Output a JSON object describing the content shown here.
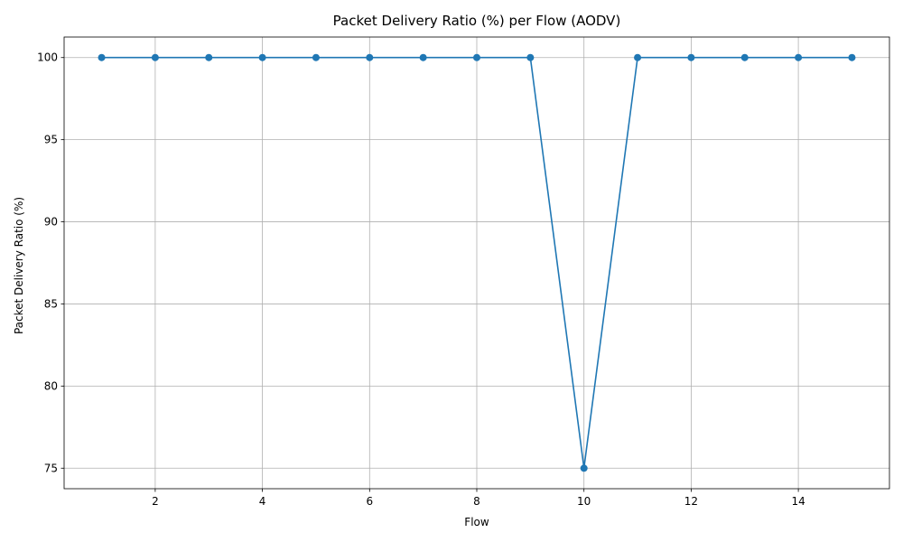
{
  "chart_data": {
    "type": "line",
    "title": "Packet Delivery Ratio (%) per Flow (AODV)",
    "xlabel": "Flow",
    "ylabel": "Packet Delivery Ratio (%)",
    "x": [
      1,
      2,
      3,
      4,
      5,
      6,
      7,
      8,
      9,
      10,
      11,
      12,
      13,
      14,
      15
    ],
    "series": [
      {
        "values": [
          100,
          100,
          100,
          100,
          100,
          100,
          100,
          100,
          100,
          75,
          100,
          100,
          100,
          100,
          100
        ],
        "color": "#1f77b4",
        "marker": "circle"
      }
    ],
    "xlim": [
      0.3,
      15.7
    ],
    "ylim": [
      73.75,
      101.25
    ],
    "xticks": [
      2,
      4,
      6,
      8,
      10,
      12,
      14
    ],
    "yticks": [
      75,
      80,
      85,
      90,
      95,
      100
    ],
    "grid": true,
    "legend": "none"
  }
}
